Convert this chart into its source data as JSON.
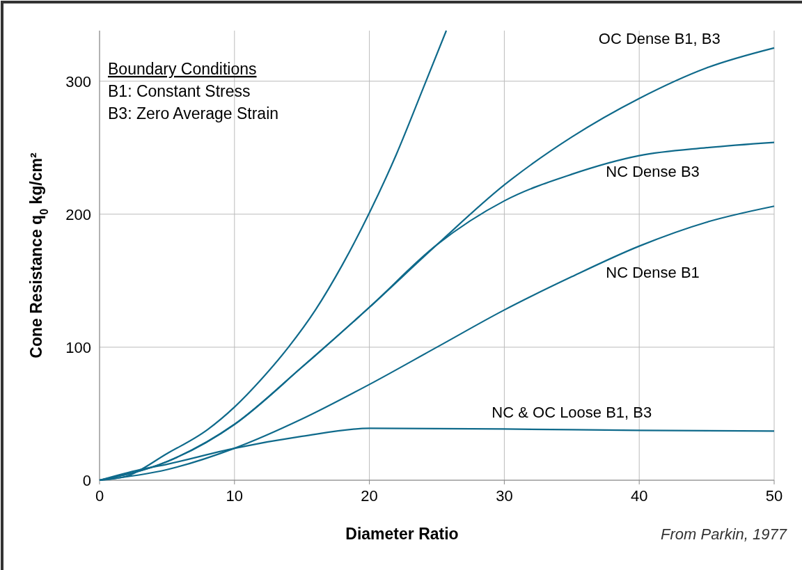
{
  "chart_data": {
    "type": "line",
    "xlabel": "Diameter Ratio",
    "ylabel": "Cone Resistance q$_{0}$ kg/cm²",
    "xlim": [
      0,
      50
    ],
    "ylim": [
      0,
      338
    ],
    "xticks": [
      0,
      10,
      20,
      30,
      40,
      50
    ],
    "yticks": [
      0,
      100,
      200,
      300
    ],
    "grid": true,
    "marker": "none",
    "line_style": "solid",
    "series": [
      {
        "color": "#0f6a8b",
        "x": [
          0,
          2,
          5,
          8,
          10,
          12,
          14,
          16,
          18,
          20,
          22,
          24,
          25.7
        ],
        "values": [
          0,
          3,
          20,
          38,
          55,
          76,
          100,
          128,
          162,
          201,
          245,
          295,
          338
        ]
      },
      {
        "name": "OC Dense B1, B3",
        "color": "#0f6a8b",
        "x": [
          0,
          5,
          10,
          15,
          20,
          25,
          30,
          35,
          40,
          45,
          50
        ],
        "values": [
          0,
          14,
          42,
          85,
          130,
          177,
          222,
          258,
          287,
          310,
          325
        ]
      },
      {
        "name": "NC Dense B3",
        "color": "#0f6a8b",
        "x": [
          0,
          5,
          10,
          15,
          20,
          25,
          30,
          35,
          40,
          45,
          50
        ],
        "values": [
          0,
          14,
          42,
          85,
          130,
          177,
          210,
          230,
          244,
          250,
          254
        ]
      },
      {
        "name": "NC Dense B1",
        "color": "#0f6a8b",
        "x": [
          0,
          5,
          10,
          15,
          20,
          25,
          30,
          35,
          40,
          45,
          50
        ],
        "values": [
          0,
          8,
          24,
          46,
          72,
          100,
          128,
          153,
          176,
          194,
          206
        ]
      },
      {
        "name": "NC & OC Loose B1, B3",
        "color": "#0f6a8b",
        "x": [
          0,
          3,
          5,
          10,
          15,
          20,
          30,
          40,
          50
        ],
        "values": [
          0,
          8,
          12,
          24,
          33,
          39,
          38.5,
          37.5,
          37
        ]
      }
    ],
    "annotations": [
      "Boundary Conditions",
      "B1: Constant Stress",
      "B3: Zero Average Strain",
      "From Parkin, 1977"
    ]
  }
}
